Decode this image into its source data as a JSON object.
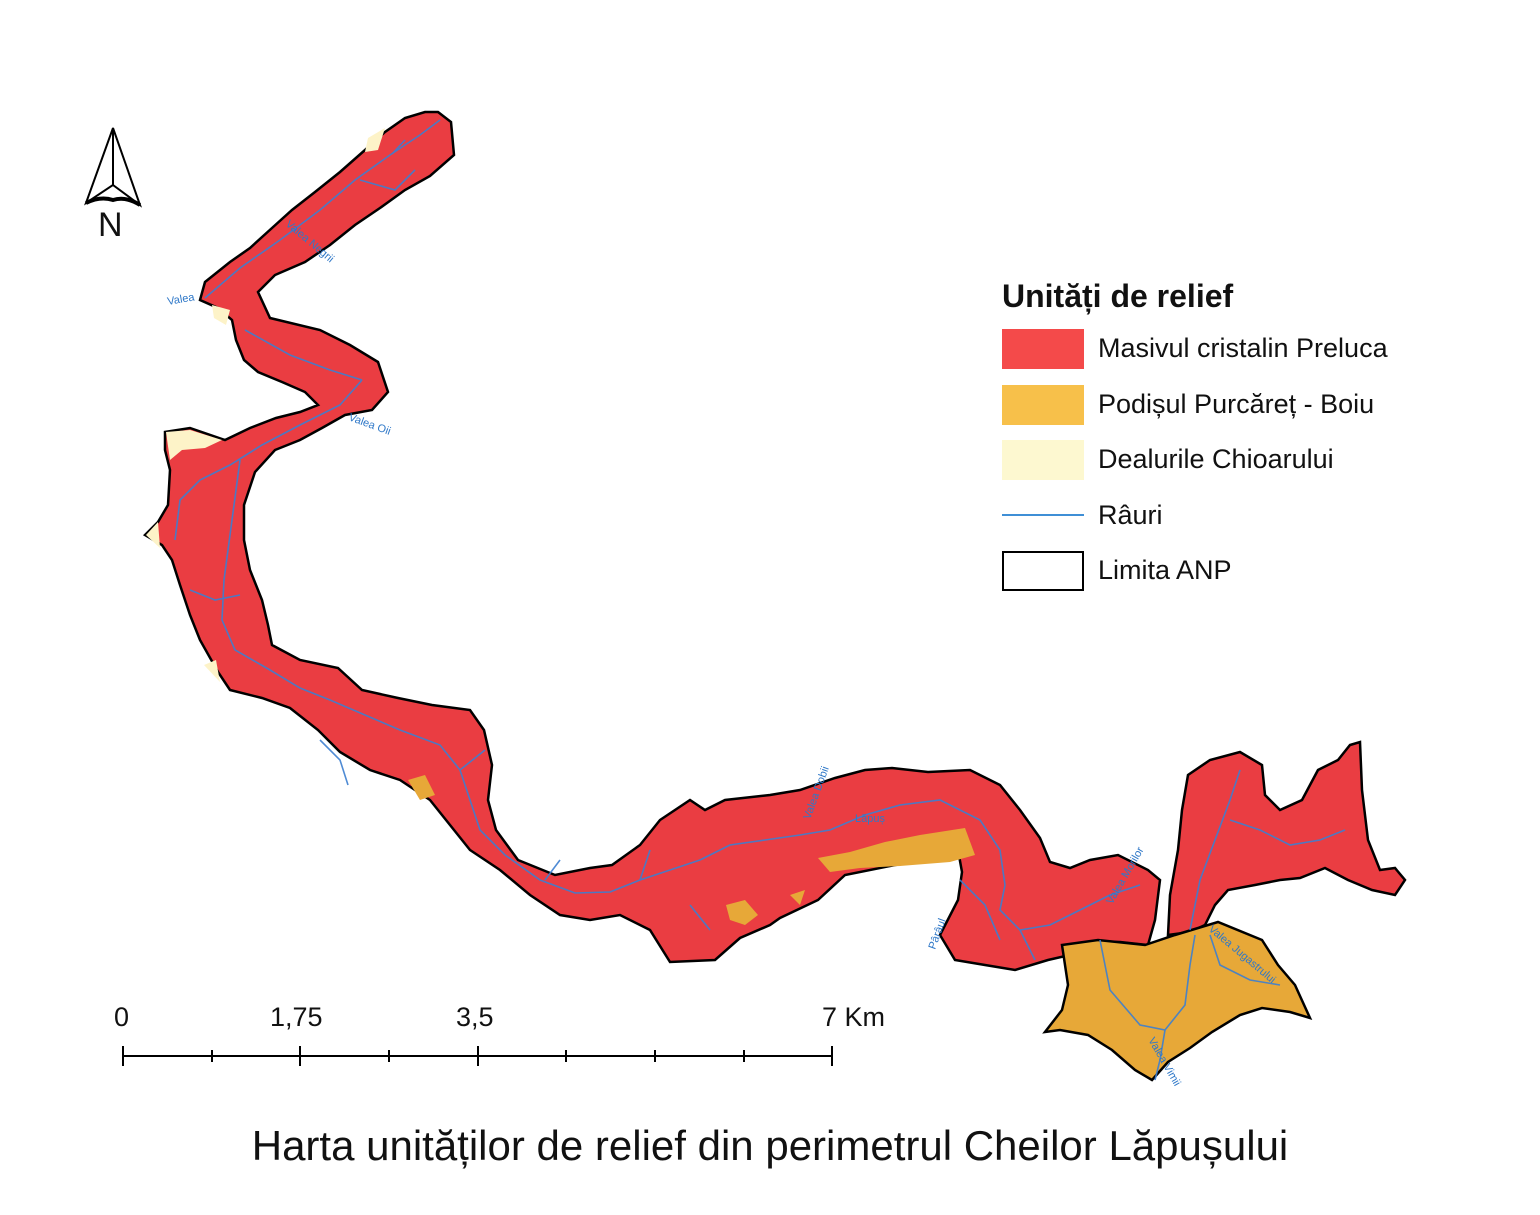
{
  "north_arrow": {
    "label": "N",
    "icon": "north-arrow-icon"
  },
  "legend": {
    "title": "Unități de relief",
    "items": [
      {
        "label": "Masivul cristalin Preluca",
        "type": "fill",
        "color": "#f44a4a"
      },
      {
        "label": "Podișul Purcăreț - Boiu",
        "type": "fill",
        "color": "#f7c04a"
      },
      {
        "label": "Dealurile Chioarului",
        "type": "fill",
        "color": "#fdf8d0"
      },
      {
        "label": "Râuri",
        "type": "line",
        "color": "#3f8fd6"
      },
      {
        "label": "Limita ANP",
        "type": "outline",
        "color": "#000000"
      }
    ]
  },
  "scale_bar": {
    "labels": [
      "0",
      "1,75",
      "3,5",
      "7 Km"
    ],
    "unit": "Km"
  },
  "river_labels": [
    "Valea",
    "Valea Oii",
    "Valea Negrii",
    "Valea Dobii",
    "Valea Morilor",
    "Valea Vimii",
    "Valea Jugastrului",
    "Pârâul",
    "Lăpuș"
  ],
  "caption": "Harta unităților de relief din perimetrul Cheilor Lăpușului"
}
